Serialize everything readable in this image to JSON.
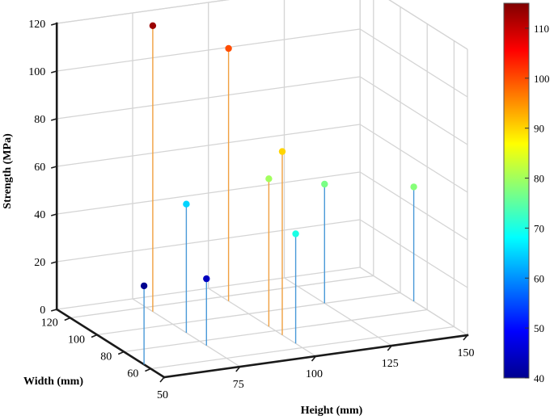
{
  "chart_data": {
    "type": "scatter",
    "title": "",
    "xlabel": "Height (mm)",
    "ylabel": "Width (mm)",
    "zlabel": "Strength (MPa)",
    "xlim": [
      50,
      150
    ],
    "ylim": [
      50,
      130
    ],
    "zlim": [
      0,
      120
    ],
    "xticks": [
      "50",
      "75",
      "100",
      "125",
      "150"
    ],
    "yticks": [
      "60",
      "80",
      "100",
      "120"
    ],
    "zticks": [
      "0",
      "20",
      "40",
      "60",
      "80",
      "100",
      "120"
    ],
    "colorbar": {
      "min": 40,
      "max": 115,
      "ticks": [
        "40",
        "50",
        "60",
        "70",
        "80",
        "90",
        "100",
        "110"
      ]
    },
    "grid": true,
    "points": [
      {
        "x": 50,
        "y": 65,
        "z": 33,
        "c": 40
      },
      {
        "x": 75,
        "y": 90,
        "z": 54,
        "c": 65
      },
      {
        "x": 75,
        "y": 75,
        "z": 28,
        "c": 44
      },
      {
        "x": 75,
        "y": 115,
        "z": 120,
        "c": 113
      },
      {
        "x": 100,
        "y": 85,
        "z": 62,
        "c": 80
      },
      {
        "x": 100,
        "y": 65,
        "z": 46,
        "c": 70
      },
      {
        "x": 100,
        "y": 115,
        "z": 106,
        "c": 100
      },
      {
        "x": 100,
        "y": 75,
        "z": 77,
        "c": 90
      },
      {
        "x": 125,
        "y": 100,
        "z": 50,
        "c": 77
      },
      {
        "x": 150,
        "y": 90,
        "z": 48,
        "c": 78
      }
    ]
  }
}
